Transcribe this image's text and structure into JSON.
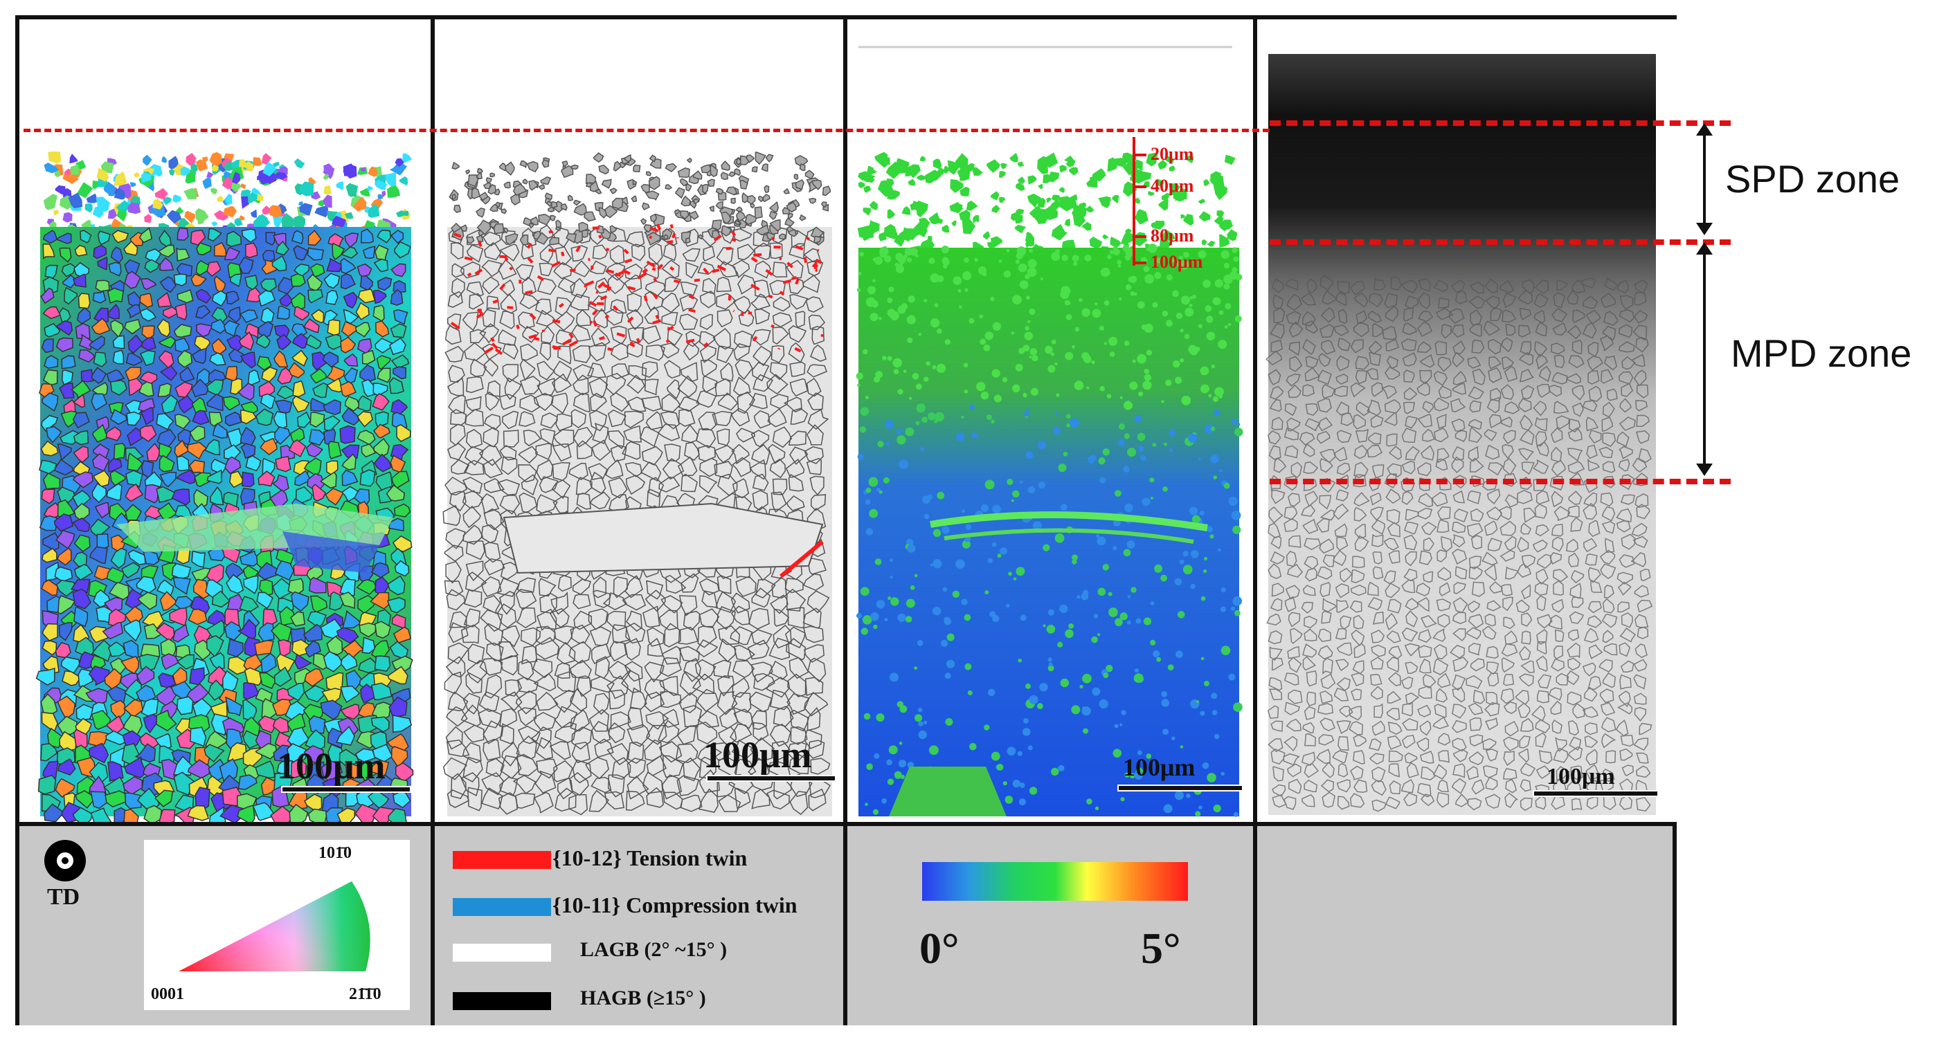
{
  "panels": [
    {
      "id": "ipf",
      "scale_label": "100μm"
    },
    {
      "id": "boundary",
      "scale_label": "100μm"
    },
    {
      "id": "kam",
      "scale_label": "100μm",
      "depth_labels": [
        "20μm",
        "40μm",
        "80μm",
        "100μm"
      ]
    },
    {
      "id": "band-contrast",
      "scale_label": "100μm"
    }
  ],
  "legend": {
    "ipf": {
      "axis_label": "TD",
      "corner_top": "101̄0",
      "corner_left": "0001",
      "corner_right": "21̄1̄0"
    },
    "boundaries": [
      {
        "label": "{10-12} Tension twin",
        "color": "#ff1a1a"
      },
      {
        "label": "{10-11} Compression twin",
        "color": "#1e8fd6"
      },
      {
        "label": "LAGB (2° ~15° )",
        "color": "#ffffff"
      },
      {
        "label": "HAGB (≥15° )",
        "color": "#000000"
      }
    ],
    "kam": {
      "min_label": "0°",
      "max_label": "5°"
    }
  },
  "zones": [
    {
      "label": "SPD zone"
    },
    {
      "label": "MPD zone"
    }
  ],
  "colors": {
    "dash": "#e01010",
    "frame": "#111111",
    "legend_bg": "#c8c8c8"
  }
}
